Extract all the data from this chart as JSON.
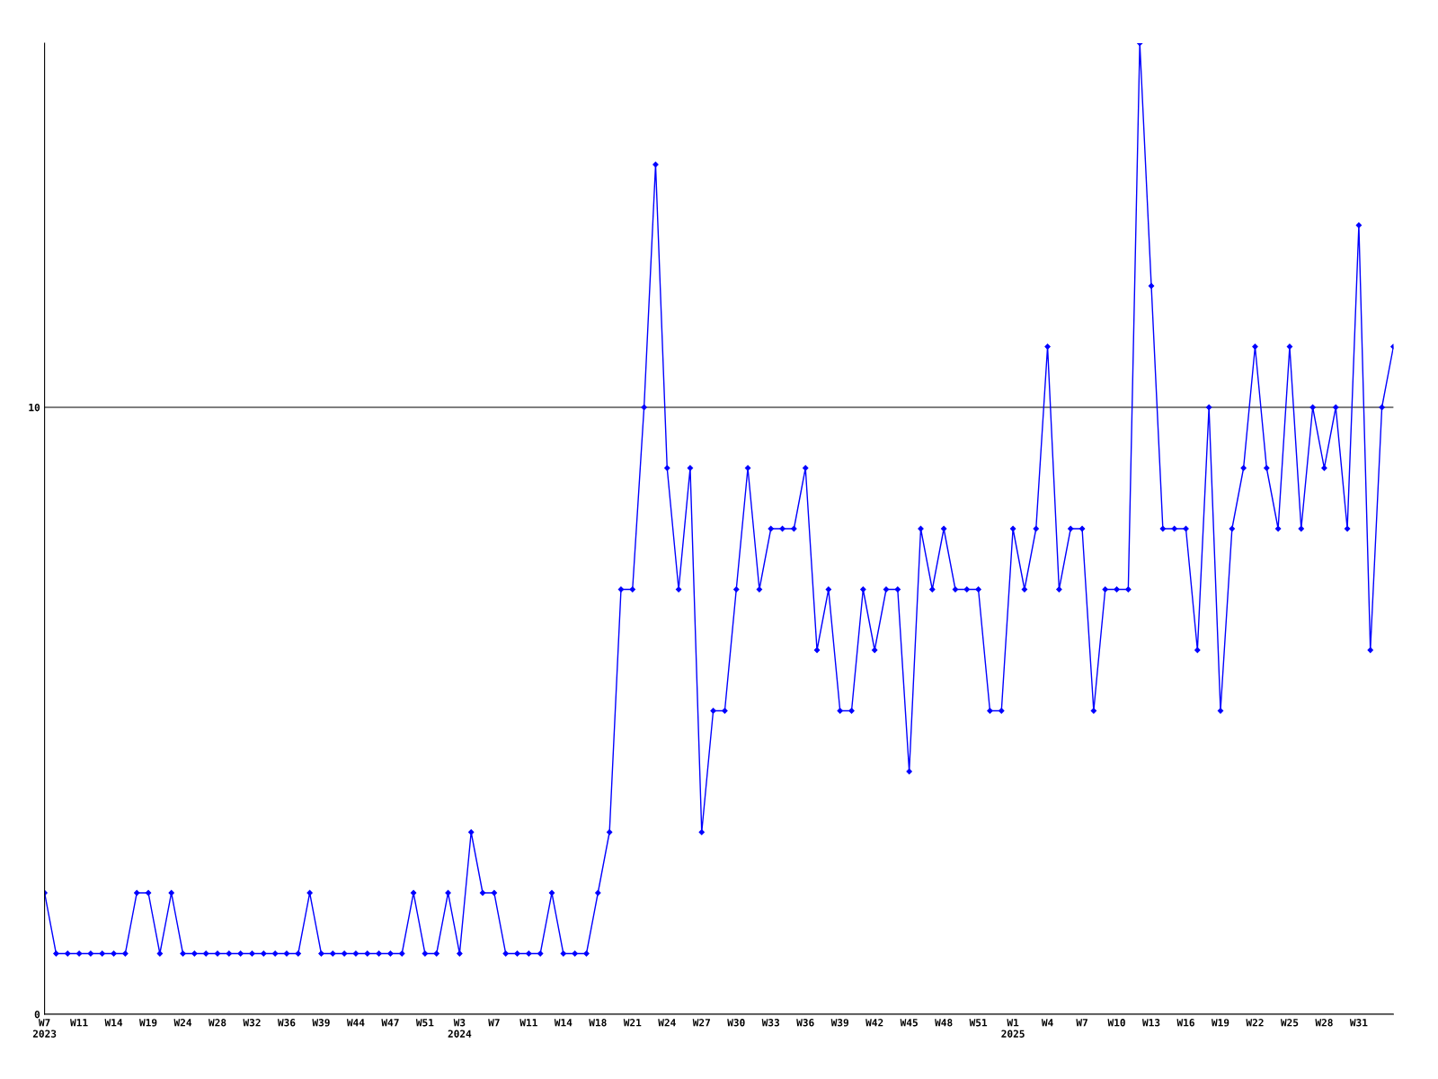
{
  "chart_data": {
    "type": "line",
    "categories": [
      "W7\n2023",
      null,
      null,
      "W11",
      null,
      null,
      "W14",
      null,
      null,
      "W19",
      null,
      null,
      "W24",
      null,
      null,
      "W28",
      null,
      null,
      "W32",
      null,
      null,
      "W36",
      null,
      null,
      "W39",
      null,
      null,
      "W44",
      null,
      null,
      "W47",
      null,
      null,
      "W51",
      null,
      null,
      "W3\n2024",
      null,
      null,
      "W7",
      null,
      null,
      "W11",
      null,
      null,
      "W14",
      null,
      null,
      "W18",
      null,
      null,
      "W21",
      null,
      null,
      "W24",
      null,
      null,
      "W27",
      null,
      null,
      "W30",
      null,
      null,
      "W33",
      null,
      null,
      "W36",
      null,
      null,
      "W39",
      null,
      null,
      "W42",
      null,
      null,
      "W45",
      null,
      null,
      "W48",
      null,
      null,
      "W51",
      null,
      null,
      "W1\n2025",
      null,
      null,
      "W4",
      null,
      null,
      "W7",
      null,
      null,
      "W10",
      null,
      null,
      "W13",
      null,
      null,
      "W16",
      null,
      null,
      "W19",
      null,
      null,
      "W22",
      null,
      null,
      "W25",
      null,
      null,
      "W28",
      null,
      null,
      "W31",
      null,
      null,
      null
    ],
    "series": [
      {
        "color": "#0000ff",
        "values": [
          2,
          1,
          1,
          1,
          1,
          1,
          1,
          1,
          2,
          2,
          1,
          2,
          1,
          1,
          1,
          1,
          1,
          1,
          1,
          1,
          1,
          1,
          1,
          2,
          1,
          1,
          1,
          1,
          1,
          1,
          1,
          1,
          2,
          1,
          1,
          2,
          1,
          3,
          2,
          2,
          1,
          1,
          1,
          1,
          2,
          1,
          1,
          1,
          2,
          3,
          7,
          7,
          10,
          14,
          9,
          7,
          9,
          3,
          5,
          5,
          7,
          9,
          7,
          8,
          8,
          8,
          9,
          6,
          7,
          5,
          5,
          7,
          6,
          7,
          7,
          4,
          8,
          7,
          8,
          7,
          7,
          7,
          5,
          5,
          8,
          7,
          8,
          11,
          7,
          8,
          8,
          5,
          7,
          7,
          7,
          16,
          12,
          8,
          8,
          8,
          6,
          10,
          5,
          8,
          9,
          11,
          9,
          8,
          11,
          8,
          10,
          9,
          10,
          8,
          13,
          6,
          10,
          11
        ]
      }
    ],
    "ylim": [
      0,
      16
    ],
    "yticks": [
      0,
      10
    ],
    "grid": "y",
    "marker": "diamond",
    "line_style": "solid",
    "legend": false
  }
}
